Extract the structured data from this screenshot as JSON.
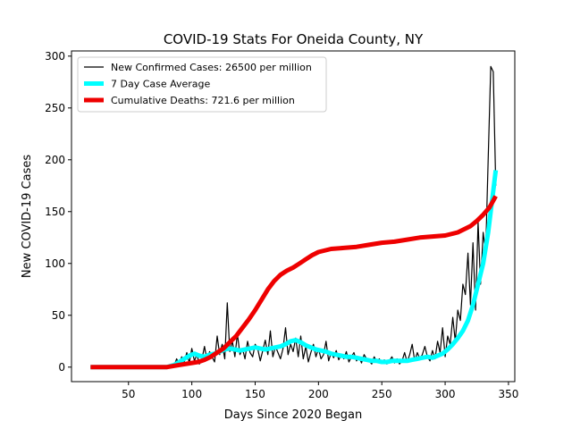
{
  "chart_data": {
    "type": "line",
    "title": "COVID-19 Stats For Oneida County, NY",
    "xlabel": "Days Since 2020 Began",
    "ylabel": "New COVID-19 Cases",
    "xlim": [
      5,
      355
    ],
    "ylim": [
      -14,
      305
    ],
    "xticks": [
      50,
      100,
      150,
      200,
      250,
      300,
      350
    ],
    "yticks": [
      0,
      50,
      100,
      150,
      200,
      250,
      300
    ],
    "grid": false,
    "legend_position": "top-left",
    "series": [
      {
        "name": "New Confirmed Cases: 26500 per million",
        "color": "#000000",
        "style": "thin",
        "x": [
          20,
          40,
          60,
          80,
          84,
          86,
          88,
          90,
          92,
          94,
          96,
          98,
          100,
          102,
          104,
          106,
          108,
          110,
          112,
          114,
          116,
          118,
          120,
          122,
          124,
          126,
          128,
          130,
          132,
          134,
          136,
          138,
          140,
          142,
          144,
          146,
          148,
          150,
          152,
          154,
          156,
          158,
          160,
          162,
          164,
          166,
          168,
          170,
          172,
          174,
          176,
          178,
          180,
          182,
          184,
          186,
          188,
          190,
          192,
          194,
          196,
          198,
          200,
          202,
          204,
          206,
          208,
          210,
          212,
          214,
          216,
          218,
          220,
          222,
          224,
          226,
          228,
          230,
          232,
          234,
          236,
          238,
          240,
          242,
          244,
          246,
          248,
          250,
          252,
          254,
          256,
          258,
          260,
          262,
          264,
          266,
          268,
          270,
          272,
          274,
          276,
          278,
          280,
          282,
          284,
          286,
          288,
          290,
          292,
          294,
          296,
          298,
          300,
          302,
          304,
          306,
          308,
          310,
          312,
          314,
          316,
          318,
          320,
          322,
          324,
          326,
          328,
          330,
          332,
          334,
          336,
          338,
          340
        ],
        "values": [
          0,
          0,
          0,
          0,
          2,
          1,
          8,
          3,
          10,
          5,
          14,
          4,
          18,
          6,
          12,
          3,
          8,
          20,
          7,
          15,
          10,
          5,
          30,
          12,
          22,
          8,
          62,
          15,
          25,
          10,
          32,
          12,
          18,
          8,
          25,
          14,
          10,
          22,
          18,
          6,
          16,
          26,
          12,
          35,
          10,
          20,
          14,
          8,
          18,
          38,
          12,
          22,
          15,
          28,
          10,
          30,
          8,
          20,
          5,
          14,
          22,
          10,
          18,
          8,
          12,
          25,
          6,
          14,
          9,
          16,
          7,
          12,
          8,
          15,
          5,
          10,
          14,
          6,
          10,
          4,
          12,
          8,
          6,
          3,
          10,
          5,
          8,
          4,
          7,
          3,
          6,
          10,
          4,
          8,
          3,
          6,
          14,
          5,
          12,
          22,
          6,
          14,
          8,
          12,
          20,
          10,
          6,
          16,
          8,
          25,
          14,
          38,
          10,
          30,
          22,
          48,
          25,
          55,
          45,
          80,
          70,
          110,
          60,
          120,
          55,
          140,
          80,
          130,
          110,
          200,
          290,
          285,
          175
        ]
      },
      {
        "name": "7 Day Case Average",
        "color": "#00ffff",
        "style": "thick",
        "x": [
          20,
          40,
          60,
          80,
          86,
          90,
          94,
          98,
          102,
          106,
          110,
          114,
          118,
          122,
          126,
          130,
          134,
          138,
          142,
          146,
          150,
          154,
          158,
          162,
          166,
          170,
          174,
          178,
          182,
          186,
          190,
          194,
          198,
          202,
          206,
          210,
          214,
          218,
          222,
          226,
          230,
          234,
          238,
          242,
          246,
          250,
          254,
          258,
          262,
          266,
          270,
          274,
          278,
          282,
          286,
          290,
          294,
          298,
          302,
          306,
          310,
          314,
          318,
          322,
          326,
          330,
          334,
          338,
          340
        ],
        "values": [
          0,
          0,
          0,
          0,
          2,
          5,
          8,
          11,
          13,
          11,
          10,
          12,
          13,
          15,
          17,
          18,
          17,
          16,
          17,
          18,
          19,
          18,
          17,
          18,
          19,
          20,
          22,
          25,
          26,
          24,
          21,
          19,
          17,
          16,
          15,
          13,
          12,
          11,
          10,
          10,
          9,
          8,
          7,
          6,
          6,
          5,
          5,
          6,
          6,
          6,
          6,
          7,
          8,
          9,
          10,
          9,
          11,
          13,
          17,
          22,
          28,
          35,
          45,
          60,
          80,
          100,
          130,
          170,
          190
        ]
      },
      {
        "name": "Cumulative Deaths: 721.6 per million",
        "color": "#ee0000",
        "style": "thick",
        "x": [
          20,
          40,
          60,
          80,
          90,
          100,
          105,
          110,
          115,
          120,
          125,
          130,
          135,
          140,
          145,
          150,
          155,
          160,
          165,
          170,
          175,
          180,
          185,
          190,
          195,
          200,
          210,
          220,
          230,
          240,
          250,
          260,
          270,
          280,
          290,
          300,
          310,
          320,
          325,
          330,
          335,
          340
        ],
        "values": [
          0,
          0,
          0,
          0,
          2,
          4,
          5,
          7,
          10,
          14,
          18,
          24,
          30,
          38,
          46,
          55,
          65,
          75,
          83,
          89,
          93,
          96,
          100,
          104,
          108,
          111,
          114,
          115,
          116,
          118,
          120,
          121,
          123,
          125,
          126,
          127,
          130,
          136,
          141,
          147,
          154,
          165
        ]
      }
    ]
  }
}
